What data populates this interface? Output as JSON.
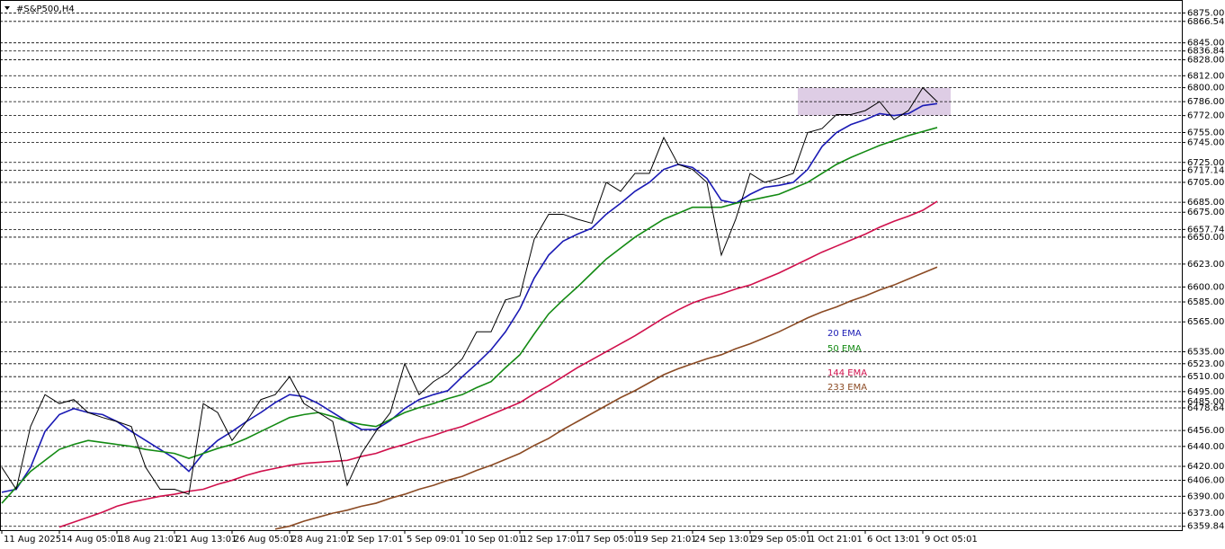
{
  "chart_data": {
    "type": "line",
    "title": "#S&P500,H4",
    "categories": [
      "11 Aug 2025",
      null,
      null,
      null,
      "14 Aug 05:01",
      null,
      null,
      null,
      "18 Aug 21:01",
      null,
      null,
      null,
      "21 Aug 13:01",
      null,
      null,
      null,
      "26 Aug 05:01",
      null,
      null,
      null,
      "28 Aug 21:01",
      null,
      null,
      null,
      "2 Sep 17:01",
      null,
      null,
      null,
      "5 Sep 09:01",
      null,
      null,
      null,
      "10 Sep 01:01",
      null,
      null,
      null,
      "12 Sep 17:01",
      null,
      null,
      null,
      "17 Sep 05:01",
      null,
      null,
      null,
      "19 Sep 21:01",
      null,
      null,
      null,
      "24 Sep 13:01",
      null,
      null,
      null,
      "29 Sep 05:01",
      null,
      null,
      null,
      "1 Oct 21:01",
      null,
      null,
      null,
      "6 Oct 13:01",
      null,
      null,
      null,
      "9 Oct 05:01",
      null
    ],
    "values": [
      6419,
      6397,
      6460,
      6492,
      6483,
      6487,
      6474,
      6469,
      6465,
      6460,
      6419,
      6397,
      6397,
      6392,
      6483,
      6474,
      6446,
      6465,
      6487,
      6492,
      6510,
      6483,
      6474,
      6465,
      6401,
      6433,
      6455,
      6474,
      6523,
      6492,
      6505,
      6514,
      6528,
      6555,
      6555,
      6587,
      6591,
      6648,
      6673,
      6673,
      6668,
      6664,
      6705,
      6696,
      6714,
      6714,
      6750,
      6723,
      6718,
      6705,
      6632,
      6668,
      6714,
      6705,
      6709,
      6714,
      6755,
      6759,
      6773,
      6773,
      6777,
      6786,
      6768,
      6777,
      6800,
      6786
    ],
    "color": "#000000",
    "series": [
      {
        "name": "20 EMA",
        "color": "#1a1ab4",
        "values": [
          6394,
          6397,
          6419,
          6455,
          6472,
          6478,
          6474,
          6472,
          6465,
          6455,
          6446,
          6437,
          6428,
          6415,
          6433,
          6446,
          6455,
          6465,
          6474,
          6484,
          6492,
          6490,
          6483,
          6474,
          6465,
          6457,
          6457,
          6466,
          6478,
          6487,
          6492,
          6496,
          6510,
          6523,
          6537,
          6555,
          6578,
          6609,
          6632,
          6646,
          6653,
          6659,
          6673,
          6684,
          6696,
          6705,
          6718,
          6723,
          6720,
          6709,
          6687,
          6684,
          6693,
          6700,
          6702,
          6705,
          6718,
          6741,
          6755,
          6763,
          6768,
          6774,
          6772,
          6774,
          6782,
          6784
        ]
      },
      {
        "name": "50 EMA",
        "color": "#138a13",
        "values": [
          6383,
          6399,
          6415,
          6426,
          6437,
          6442,
          6446,
          6444,
          6442,
          6440,
          6437,
          6435,
          6433,
          6428,
          6433,
          6438,
          6442,
          6448,
          6455,
          6462,
          6469,
          6472,
          6474,
          6470,
          6465,
          6462,
          6460,
          6467,
          6474,
          6479,
          6483,
          6488,
          6492,
          6499,
          6505,
          6519,
          6532,
          6553,
          6573,
          6587,
          6600,
          6614,
          6628,
          6639,
          6650,
          6659,
          6668,
          6674,
          6680,
          6680,
          6680,
          6684,
          6687,
          6690,
          6693,
          6699,
          6705,
          6714,
          6723,
          6730,
          6736,
          6742,
          6747,
          6752,
          6756,
          6760
        ]
      },
      {
        "name": "144 EMA",
        "color": "#d0104c",
        "values": [
          null,
          null,
          null,
          null,
          6359,
          6364,
          6369,
          6374,
          6380,
          6384,
          6387,
          6390,
          6392,
          6395,
          6397,
          6402,
          6406,
          6411,
          6415,
          6418,
          6421,
          6423,
          6424,
          6425,
          6426,
          6430,
          6433,
          6438,
          6442,
          6447,
          6451,
          6456,
          6460,
          6466,
          6472,
          6478,
          6484,
          6493,
          6501,
          6510,
          6519,
          6527,
          6535,
          6543,
          6551,
          6560,
          6569,
          6577,
          6584,
          6589,
          6593,
          6598,
          6602,
          6608,
          6614,
          6621,
          6628,
          6635,
          6641,
          6647,
          6653,
          6660,
          6666,
          6671,
          6677,
          6686
        ]
      },
      {
        "name": "233 EMA",
        "color": "#8b4a23",
        "values": [
          null,
          null,
          null,
          null,
          null,
          null,
          null,
          null,
          null,
          null,
          null,
          null,
          null,
          null,
          null,
          null,
          null,
          null,
          null,
          6357,
          6360,
          6365,
          6369,
          6373,
          6376,
          6380,
          6383,
          6388,
          6392,
          6397,
          6401,
          6406,
          6410,
          6416,
          6421,
          6427,
          6433,
          6441,
          6448,
          6457,
          6465,
          6473,
          6481,
          6489,
          6496,
          6504,
          6512,
          6518,
          6523,
          6528,
          6532,
          6538,
          6543,
          6549,
          6555,
          6562,
          6569,
          6575,
          6580,
          6586,
          6591,
          6597,
          6602,
          6608,
          6614,
          6620
        ]
      }
    ],
    "zone": [
      6772,
      6800
    ],
    "zone_color": "#d8c4e0",
    "ylim": [
      6356,
      6888
    ],
    "yticks": [
      {
        "value": 6875,
        "label": "6875.00"
      },
      6866.54,
      {
        "value": 6845,
        "label": "6845.00"
      },
      6836.84,
      {
        "value": 6828,
        "label": "6828.00"
      },
      {
        "value": 6812,
        "label": "6812.00"
      },
      {
        "value": 6800,
        "label": "6800.00"
      },
      {
        "value": 6786,
        "label": "6786.00"
      },
      {
        "value": 6772,
        "label": "6772.00"
      },
      {
        "value": 6755,
        "label": "6755.00"
      },
      {
        "value": 6745,
        "label": "6745.00"
      },
      {
        "value": 6725,
        "label": "6725.00"
      },
      6717.14,
      {
        "value": 6705,
        "label": "6705.00"
      },
      {
        "value": 6685,
        "label": "6685.00"
      },
      {
        "value": 6675,
        "label": "6675.00"
      },
      6657.74,
      {
        "value": 6650,
        "label": "6650.00"
      },
      {
        "value": 6623,
        "label": "6623.00"
      },
      {
        "value": 6600,
        "label": "6600.00"
      },
      {
        "value": 6585,
        "label": "6585.00"
      },
      {
        "value": 6565,
        "label": "6565.00"
      },
      {
        "value": 6535,
        "label": "6535.00"
      },
      {
        "value": 6523,
        "label": "6523.00"
      },
      {
        "value": 6510,
        "label": "6510.00"
      },
      {
        "value": 6495,
        "label": "6495.00"
      },
      {
        "value": 6485,
        "label": "6485.00"
      },
      6478.64,
      {
        "value": 6456,
        "label": "6456.00"
      },
      {
        "value": 6440,
        "label": "6440.00"
      },
      {
        "value": 6420,
        "label": "6420.00"
      },
      {
        "value": 6406,
        "label": "6406.00"
      },
      {
        "value": 6390,
        "label": "6390.00"
      },
      {
        "value": 6373,
        "label": "6373.00"
      },
      6359.84
    ],
    "grid": true
  }
}
